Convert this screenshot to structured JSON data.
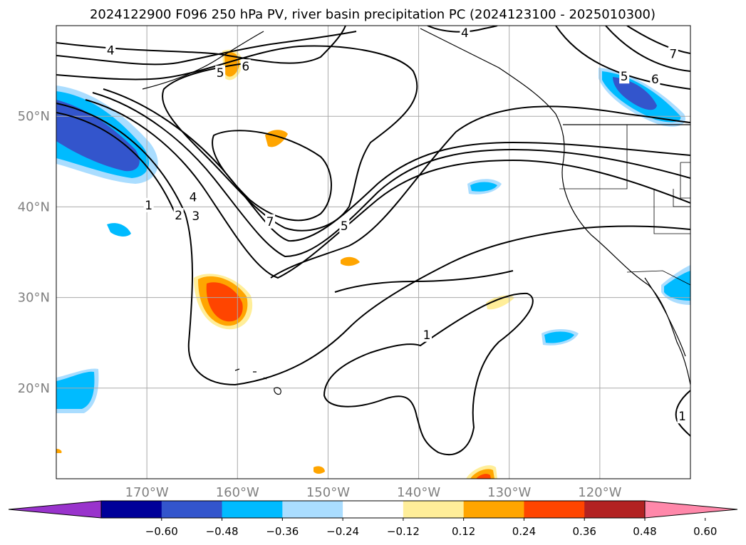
{
  "title": "2024122900 F096 250 hPa PV, river basin precipitation PC (2024123100 - 2025010300)",
  "map": {
    "lon_range": [
      -180,
      -110
    ],
    "lat_range": [
      10,
      60
    ],
    "lat_ticks": [
      {
        "value": 20,
        "label": "20°N"
      },
      {
        "value": 30,
        "label": "30°N"
      },
      {
        "value": 40,
        "label": "40°N"
      },
      {
        "value": 50,
        "label": "50°N"
      }
    ],
    "lon_ticks": [
      {
        "value": -170,
        "label": "170°W"
      },
      {
        "value": -160,
        "label": "160°W"
      },
      {
        "value": -150,
        "label": "150°W"
      },
      {
        "value": -140,
        "label": "140°W"
      },
      {
        "value": -130,
        "label": "130°W"
      },
      {
        "value": -120,
        "label": "120°W"
      }
    ],
    "grid": true,
    "contour_labels": [
      {
        "text": "4",
        "lon": -174,
        "lat": 57.3
      },
      {
        "text": "5",
        "lon": -161.9,
        "lat": 54.8
      },
      {
        "text": "6",
        "lon": -159.1,
        "lat": 55.5
      },
      {
        "text": "4",
        "lon": -134.9,
        "lat": 59.2
      },
      {
        "text": "7",
        "lon": -111.9,
        "lat": 56.9
      },
      {
        "text": "5",
        "lon": -117.3,
        "lat": 54.4
      },
      {
        "text": "6",
        "lon": -113.9,
        "lat": 54.1
      },
      {
        "text": "1",
        "lon": -169.8,
        "lat": 40.2
      },
      {
        "text": "2",
        "lon": -166.5,
        "lat": 39.1
      },
      {
        "text": "3",
        "lon": -164.6,
        "lat": 39.0
      },
      {
        "text": "4",
        "lon": -164.9,
        "lat": 41.1
      },
      {
        "text": "7",
        "lon": -156.4,
        "lat": 38.4
      },
      {
        "text": "5",
        "lon": -148.2,
        "lat": 37.9
      },
      {
        "text": "1",
        "lon": -139.1,
        "lat": 25.9
      },
      {
        "text": "1",
        "lon": -110.9,
        "lat": 16.9
      }
    ],
    "precip_colors": [
      "#9933cc",
      "#000099",
      "#3355cc",
      "#00bbff",
      "#aaddff",
      "#ffffff",
      "#ffee99",
      "#ffa500",
      "#ff4500",
      "#b22222",
      "#ff88aa"
    ]
  },
  "colorbar": {
    "tick_labels": [
      "−0.60",
      "−0.48",
      "−0.36",
      "−0.24",
      "−0.12",
      "0.12",
      "0.24",
      "0.36",
      "0.48",
      "0.60"
    ]
  }
}
